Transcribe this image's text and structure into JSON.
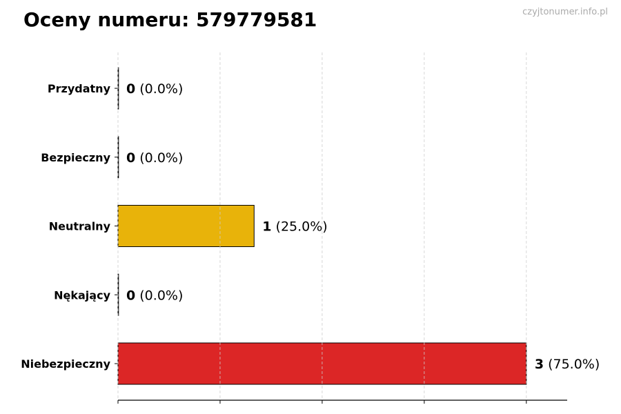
{
  "title": "Oceny numeru: 579779581",
  "watermark": "czyjtonumer.info.pl",
  "chart_data": {
    "type": "bar",
    "orientation": "horizontal",
    "title": "Oceny numeru: 579779581",
    "categories": [
      "Przydatny",
      "Bezpieczny",
      "Neutralny",
      "Nękający",
      "Niebezpieczny"
    ],
    "values": [
      0,
      0,
      1,
      0,
      3
    ],
    "labels": [
      {
        "count": "0",
        "pct": "(0.0%)"
      },
      {
        "count": "0",
        "pct": "(0.0%)"
      },
      {
        "count": "1",
        "pct": "(25.0%)"
      },
      {
        "count": "0",
        "pct": "(0.0%)"
      },
      {
        "count": "3",
        "pct": "(75.0%)"
      }
    ],
    "colors": [
      "#2e9e3e",
      "#4c8fd6",
      "#e8b30a",
      "#e07a1f",
      "#dc2626"
    ],
    "xlim": [
      0,
      3.3
    ],
    "grid_x": [
      0,
      0.75,
      1.5,
      2.25,
      3.0
    ],
    "grid": true,
    "xlabel": "",
    "ylabel": ""
  }
}
